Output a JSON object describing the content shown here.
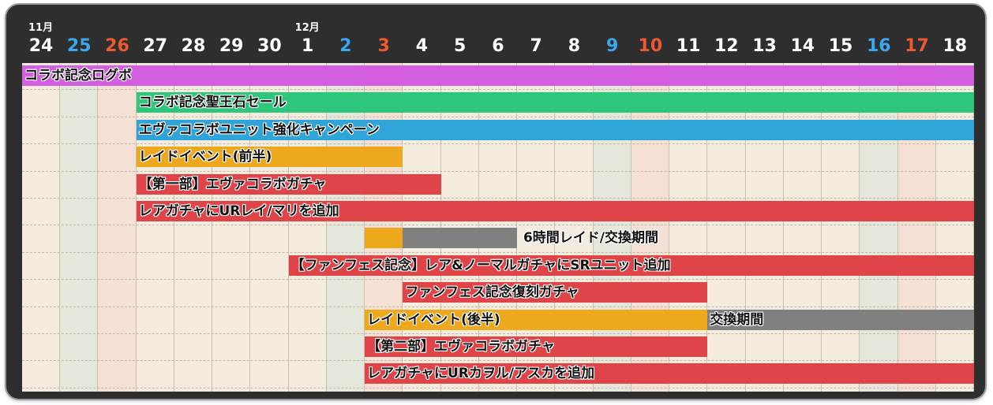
{
  "chart_data": {
    "type": "gantt",
    "months": [
      {
        "label": "11月",
        "day_index": 0
      },
      {
        "label": "12月",
        "day_index": 7
      }
    ],
    "days": [
      "24",
      "25",
      "26",
      "27",
      "28",
      "29",
      "30",
      "1",
      "2",
      "3",
      "4",
      "5",
      "6",
      "7",
      "8",
      "9",
      "10",
      "11",
      "12",
      "13",
      "14",
      "15",
      "16",
      "17",
      "18"
    ],
    "day_types": [
      "",
      "sat",
      "sun",
      "",
      "",
      "",
      "",
      "",
      "sat",
      "sun",
      "",
      "",
      "",
      "",
      "",
      "sat",
      "sun",
      "",
      "",
      "",
      "",
      "",
      "sat",
      "sun",
      ""
    ],
    "tasks": [
      {
        "label": "コラボ記念ログボ",
        "start": 0,
        "end": 25,
        "color": "#d45ee0",
        "label_day": 0
      },
      {
        "label": "コラボ記念聖王石セール",
        "start": 3,
        "end": 25,
        "color": "#2ec67a",
        "label_day": 3
      },
      {
        "label": "エヴァコラボユニット強化キャンペーン",
        "start": 3,
        "end": 25,
        "color": "#2ea4d8",
        "label_day": 3
      },
      {
        "label": "レイドイベント(前半)",
        "start": 3,
        "end": 10,
        "color": "#eea81e",
        "label_day": 3
      },
      {
        "label": "【第一部】エヴァコラボガチャ",
        "start": 3,
        "end": 11,
        "color": "#de4448",
        "label_day": 3
      },
      {
        "label": "レアガチャにURレイ/マリを追加",
        "start": 3,
        "end": 25,
        "color": "#de4448",
        "label_day": 3
      },
      {
        "label": "",
        "start": 9,
        "end": 10,
        "color": "#eea81e",
        "label_day": 9
      },
      {
        "label": "6時間レイド/交換期間",
        "start": 10,
        "end": 13,
        "color": "#808080",
        "label_day": 13.1
      },
      {
        "label": "【ファンフェス記念】レア&ノーマルガチャにSRユニット追加",
        "start": 7,
        "end": 25,
        "color": "#de4448",
        "label_day": 7
      },
      {
        "label": "ファンフェス記念復刻ガチャ",
        "start": 10,
        "end": 18,
        "color": "#de4448",
        "label_day": 10
      },
      {
        "label": "レイドイベント(後半)",
        "start": 9,
        "end": 18,
        "color": "#eea81e",
        "label_day": 9
      },
      {
        "label": "交換期間",
        "start": 18,
        "end": 25,
        "color": "#808080",
        "label_day": 18
      },
      {
        "label": "【第二部】エヴァコラボガチャ",
        "start": 9,
        "end": 18,
        "color": "#de4448",
        "label_day": 9
      },
      {
        "label": "レアガチャにURカヲル/アスカを追加",
        "start": 9,
        "end": 25,
        "color": "#de4448",
        "label_day": 9
      }
    ],
    "rows": [
      0,
      1,
      2,
      3,
      4,
      5,
      6,
      6,
      7,
      8,
      9,
      9,
      10,
      11
    ],
    "colors": {
      "header_bg": "#2e2e2e",
      "weekday_text": "#ffffff",
      "sat_text": "#3aa8ee",
      "sun_text": "#f0582e",
      "weekday_bg": "#f3ecdf",
      "sat_bg": "#e4e7da",
      "sun_bg": "#f4e0d4"
    }
  }
}
